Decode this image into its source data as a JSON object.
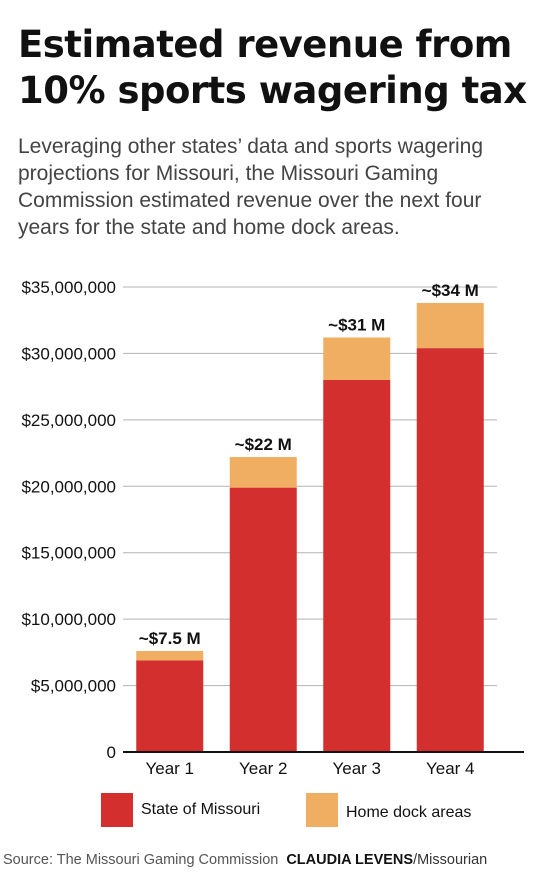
{
  "header": {
    "title": "Estimated revenue from 10% sports wagering tax",
    "subtitle": "Leveraging other states’ data and sports wagering projections for Missouri, the Missouri Gaming Commission estimated revenue over the next four years for the state and home dock areas."
  },
  "colors": {
    "state": "#d32f2f",
    "home_dock": "#f0ae62",
    "grid": "#b3b3b3"
  },
  "chart_data": {
    "type": "bar",
    "stacked": true,
    "categories": [
      "Year 1",
      "Year 2",
      "Year 3",
      "Year 4"
    ],
    "series": [
      {
        "name": "State of Missouri",
        "values": [
          6900000,
          19900000,
          28000000,
          30400000
        ]
      },
      {
        "name": "Home dock areas",
        "values": [
          700000,
          2300000,
          3200000,
          3400000
        ]
      }
    ],
    "total_labels": [
      "~$7.5 M",
      "~$22 M",
      "~$31 M",
      "~$34 M"
    ],
    "ylim": [
      0,
      35000000
    ],
    "yticks": [
      0,
      5000000,
      10000000,
      15000000,
      20000000,
      25000000,
      30000000,
      35000000
    ],
    "ytick_labels": [
      "0",
      "$5,000,000",
      "$10,000,000",
      "$15,000,000",
      "$20,000,000",
      "$25,000,000",
      "$30,000,000",
      "$35,000,000"
    ],
    "grid": true,
    "legend_position": "bottom"
  },
  "legend": {
    "state_label": "State of Missouri",
    "home_dock_label": "Home dock areas"
  },
  "footer": {
    "source": "Source: The Missouri Gaming Commission",
    "credit": "CLAUDIA LEVENS",
    "org": "/Missourian"
  }
}
